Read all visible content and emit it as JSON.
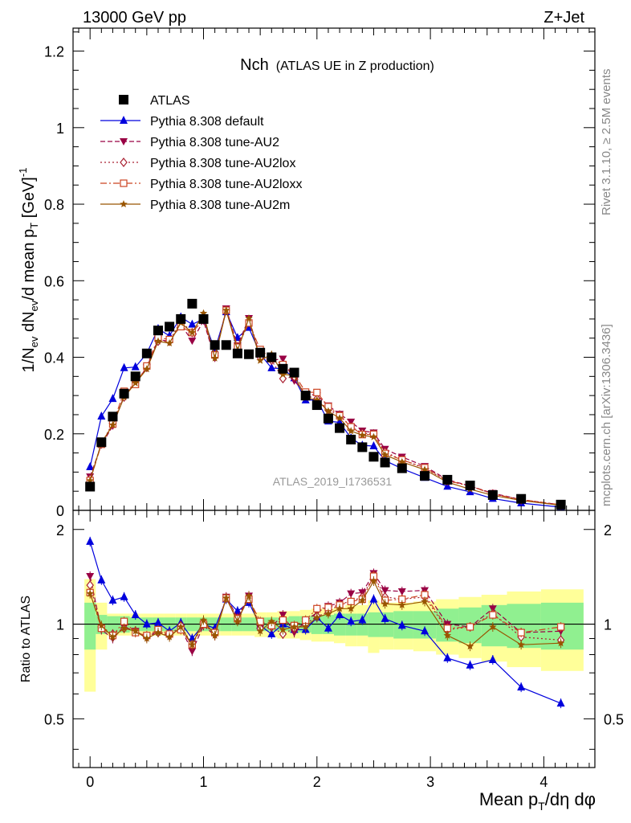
{
  "header": {
    "left": "13000 GeV pp",
    "right": "Z+Jet"
  },
  "side": {
    "rivet": "Rivet 3.1.10, ≥ 2.5M events",
    "mcplots": "mcplots.cern.ch [arXiv:1306.3436]"
  },
  "chart_data": {
    "type": "line",
    "title": "Nch",
    "subtitle": "(ATLAS UE in Z production)",
    "watermark": "ATLAS_2019_I1736531",
    "xlabel": "Mean p_T/dη dφ",
    "ylabel": "1/N_ev dN_ev/d mean p_T [GeV]^-1",
    "ratio_ylabel": "Ratio to ATLAS",
    "xlim": [
      -0.15,
      4.45
    ],
    "ylim": [
      0,
      1.26
    ],
    "ratio_ylim": [
      0.35,
      2.3
    ],
    "xticks": [
      "0",
      "1",
      "2",
      "3",
      "4"
    ],
    "yticks": [
      "0",
      "0.2",
      "0.4",
      "0.6",
      "0.8",
      "1",
      "1.2"
    ],
    "ratio_yticks": [
      "0.5",
      "1",
      "2"
    ],
    "legend_position": "top-left",
    "x": [
      0.0,
      0.1,
      0.2,
      0.3,
      0.4,
      0.5,
      0.6,
      0.7,
      0.8,
      0.9,
      1.0,
      1.1,
      1.2,
      1.3,
      1.4,
      1.5,
      1.6,
      1.7,
      1.8,
      1.9,
      2.0,
      2.1,
      2.2,
      2.3,
      2.4,
      2.5,
      2.6,
      2.75,
      2.95,
      3.15,
      3.35,
      3.55,
      3.8,
      4.15
    ],
    "data_band": {
      "green": [
        0.17,
        0.07,
        0.06,
        0.06,
        0.05,
        0.05,
        0.05,
        0.05,
        0.05,
        0.05,
        0.05,
        0.05,
        0.05,
        0.05,
        0.05,
        0.05,
        0.05,
        0.05,
        0.06,
        0.06,
        0.07,
        0.07,
        0.08,
        0.08,
        0.08,
        0.09,
        0.09,
        0.1,
        0.1,
        0.12,
        0.13,
        0.15,
        0.16,
        0.17
      ],
      "yellow": [
        0.39,
        0.17,
        0.08,
        0.08,
        0.08,
        0.08,
        0.08,
        0.08,
        0.08,
        0.08,
        0.08,
        0.08,
        0.08,
        0.08,
        0.08,
        0.09,
        0.09,
        0.1,
        0.1,
        0.11,
        0.12,
        0.12,
        0.13,
        0.15,
        0.15,
        0.19,
        0.17,
        0.17,
        0.18,
        0.2,
        0.22,
        0.24,
        0.27,
        0.29
      ]
    },
    "series": [
      {
        "name": "ATLAS",
        "color": "#000000",
        "marker": "square-filled",
        "line": "none",
        "values": [
          0.062,
          0.178,
          0.245,
          0.305,
          0.35,
          0.41,
          0.47,
          0.48,
          0.5,
          0.54,
          0.5,
          0.432,
          0.432,
          0.41,
          0.408,
          0.412,
          0.4,
          0.37,
          0.36,
          0.3,
          0.275,
          0.24,
          0.215,
          0.185,
          0.165,
          0.14,
          0.125,
          0.11,
          0.09,
          0.08,
          0.065,
          0.04,
          0.03,
          0.015
        ]
      },
      {
        "name": "Pythia 8.308 default",
        "color": "#0000dd",
        "marker": "triangle-up-filled",
        "line": "solid",
        "ratio": [
          1.83,
          1.38,
          1.19,
          1.22,
          1.07,
          1.0,
          1.01,
          0.95,
          1.01,
          0.9,
          1.0,
          0.97,
          1.2,
          1.1,
          1.17,
          0.99,
          0.93,
          1.0,
          0.96,
          0.96,
          1.05,
          0.97,
          1.07,
          1.02,
          1.03,
          1.2,
          1.04,
          0.99,
          0.95,
          0.78,
          0.74,
          0.77,
          0.63,
          0.56
        ]
      },
      {
        "name": "Pythia 8.308 tune-AU2",
        "color": "#990044",
        "marker": "triangle-down-filled",
        "line": "dashed",
        "ratio": [
          1.42,
          0.96,
          0.9,
          0.98,
          0.95,
          0.91,
          0.95,
          0.92,
          0.97,
          0.82,
          0.99,
          0.92,
          1.22,
          1.05,
          1.23,
          0.97,
          0.98,
          1.07,
          0.94,
          1.02,
          1.09,
          1.14,
          1.17,
          1.25,
          1.26,
          1.45,
          1.28,
          1.27,
          1.28,
          1.0,
          0.98,
          1.12,
          0.94,
          0.95
        ]
      },
      {
        "name": "Pythia 8.308 tune-AU2lox",
        "color": "#aa2233",
        "marker": "diamond-open",
        "line": "dotted",
        "ratio": [
          1.33,
          0.98,
          0.93,
          0.97,
          0.95,
          0.91,
          0.94,
          0.92,
          0.99,
          0.86,
          1.0,
          0.93,
          1.21,
          1.04,
          1.21,
          0.97,
          0.98,
          0.93,
          0.97,
          1.0,
          1.06,
          1.09,
          1.16,
          1.18,
          1.22,
          1.43,
          1.22,
          1.2,
          1.22,
          0.96,
          0.98,
          1.08,
          0.91,
          0.89
        ]
      },
      {
        "name": "Pythia 8.308 tune-AU2loxx",
        "color": "#cc4422",
        "marker": "square-open",
        "line": "dashdot",
        "ratio": [
          1.26,
          0.97,
          0.92,
          1.02,
          0.94,
          0.92,
          0.96,
          0.93,
          0.96,
          0.86,
          1.0,
          0.94,
          1.21,
          1.04,
          1.2,
          1.02,
          0.99,
          1.03,
          0.99,
          1.03,
          1.12,
          1.13,
          1.15,
          1.18,
          1.2,
          1.42,
          1.19,
          1.2,
          1.24,
          0.97,
          0.98,
          1.07,
          0.94,
          0.98
        ]
      },
      {
        "name": "Pythia 8.308 tune-AU2m",
        "color": "#995500",
        "marker": "star",
        "line": "solid",
        "ratio": [
          1.25,
          0.99,
          0.91,
          0.97,
          0.95,
          0.9,
          0.94,
          0.91,
          0.98,
          0.86,
          1.03,
          0.92,
          1.21,
          1.02,
          1.23,
          0.95,
          1.02,
          0.96,
          0.98,
          0.98,
          1.05,
          1.08,
          1.12,
          1.12,
          1.19,
          1.37,
          1.16,
          1.15,
          1.18,
          0.92,
          0.85,
          0.98,
          0.86,
          0.87
        ]
      }
    ]
  }
}
